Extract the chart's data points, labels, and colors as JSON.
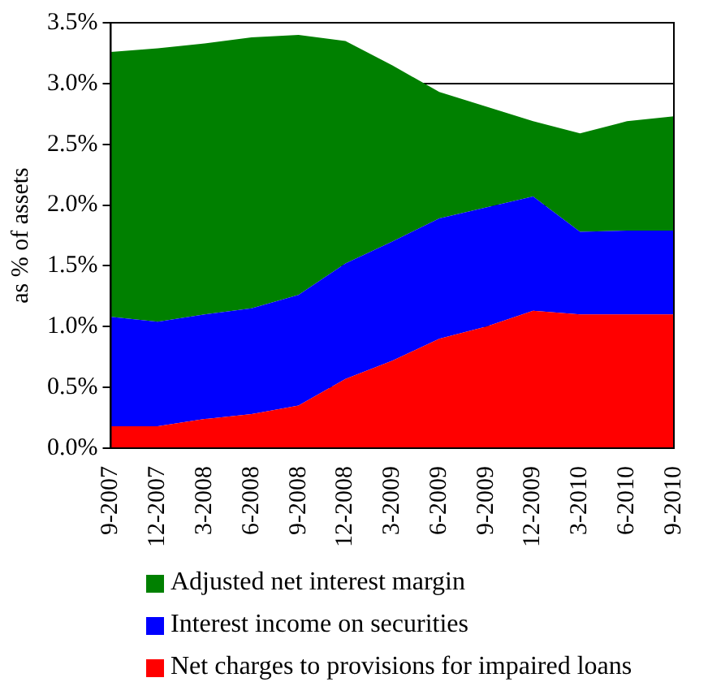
{
  "chart_data": {
    "type": "area",
    "stacked": true,
    "ylabel": "as % of assets",
    "categories": [
      "9-2007",
      "12-2007",
      "3-2008",
      "6-2008",
      "9-2008",
      "12-2008",
      "3-2009",
      "6-2009",
      "9-2009",
      "12-2009",
      "3-2010",
      "6-2010",
      "9-2010"
    ],
    "series": [
      {
        "name": "Net charges to provisions for impaired loans",
        "color": "#ff0000",
        "values": [
          0.18,
          0.18,
          0.24,
          0.28,
          0.35,
          0.57,
          0.72,
          0.9,
          1.0,
          1.13,
          1.1,
          1.1,
          1.1
        ]
      },
      {
        "name": "Interest income on securities",
        "color": "#0000ff",
        "values": [
          0.9,
          0.86,
          0.86,
          0.87,
          0.91,
          0.95,
          0.98,
          0.99,
          0.98,
          0.94,
          0.68,
          0.69,
          0.69
        ]
      },
      {
        "name": "Adjusted net interest margin",
        "color": "#008000",
        "values": [
          2.18,
          2.25,
          2.23,
          2.23,
          2.14,
          1.83,
          1.45,
          1.04,
          0.83,
          0.62,
          0.81,
          0.9,
          0.94
        ]
      }
    ],
    "ylim": [
      0,
      3.5
    ],
    "yticks": [
      {
        "value": 0,
        "label": "0.0%"
      },
      {
        "value": 0.5,
        "label": "0.5%"
      },
      {
        "value": 1,
        "label": "1.0%"
      },
      {
        "value": 1.5,
        "label": "1.5%"
      },
      {
        "value": 2,
        "label": "2.0%"
      },
      {
        "value": 2.5,
        "label": "2.5%"
      },
      {
        "value": 3,
        "label": "3.0%"
      },
      {
        "value": 3.5,
        "label": "3.5%"
      }
    ],
    "grid": "y",
    "legend": "bottom"
  }
}
